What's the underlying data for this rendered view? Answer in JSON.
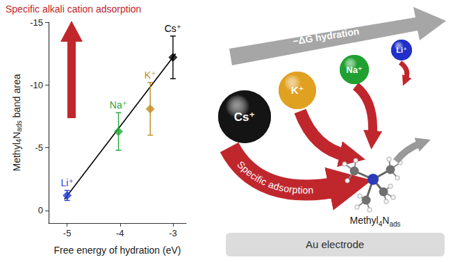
{
  "chart_data": {
    "type": "scatter",
    "xlabel": "Free energy of hydration (eV)",
    "ylabel": [
      {
        "text": "Methyl"
      },
      {
        "text": "4",
        "sub": true
      },
      {
        "text": "N"
      },
      {
        "text": "ads",
        "sub": true
      },
      {
        "text": " band area"
      }
    ],
    "xlim": [
      -5.35,
      -2.75
    ],
    "xticks": [
      -5,
      -4,
      -3
    ],
    "ylim": [
      1,
      -15
    ],
    "yticks": [
      0,
      -5,
      -10,
      -15
    ],
    "grid": false,
    "points": [
      {
        "label": "Li⁺",
        "x": -5.0,
        "y": -1.2,
        "error": 0.4,
        "color": "#1f3bd6"
      },
      {
        "label": "Na⁺",
        "x": -4.03,
        "y": -6.3,
        "error": 1.5,
        "color": "#1fa83a"
      },
      {
        "label": "K⁺",
        "x": -3.43,
        "y": -8.1,
        "error": 2.1,
        "color": "#c28a1e"
      },
      {
        "label": "Cs⁺",
        "x": -3.0,
        "y": -12.2,
        "error": 1.7,
        "color": "#000000"
      }
    ],
    "fit": {
      "x": [
        -5.05,
        -2.95
      ],
      "values": [
        -0.9,
        -12.5
      ],
      "color": "#000000"
    },
    "annotation": {
      "text": "Specific alkali cation adsorption",
      "color": "#c0272d"
    }
  },
  "diagram": {
    "hydration_arrow": "−ΔG hydration",
    "adsorption_arrow": "Specific adsorption",
    "cations": [
      {
        "label": "Cs⁺",
        "color": "#141414"
      },
      {
        "label": "K⁺",
        "color": "#e0a020"
      },
      {
        "label": "Na⁺",
        "color": "#20a030"
      },
      {
        "label": "Li⁺",
        "color": "#2030c8"
      }
    ],
    "molecule_label": [
      {
        "text": "Methyl"
      },
      {
        "text": "4",
        "sub": true
      },
      {
        "text": "N"
      },
      {
        "text": "ads",
        "sub": true
      }
    ],
    "electrode": "Au electrode"
  }
}
